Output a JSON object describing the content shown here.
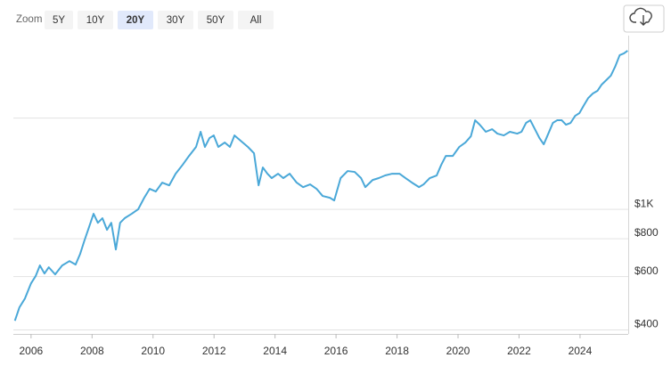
{
  "toolbar": {
    "zoom_label": "Zoom",
    "ranges": [
      "5Y",
      "10Y",
      "20Y",
      "30Y",
      "50Y",
      "All"
    ],
    "selected_index": 2
  },
  "chart_data": {
    "type": "line",
    "log_scale": true,
    "grid": true,
    "color": "#4aa8d8",
    "x": [
      2005.47,
      2005.62,
      2005.8,
      2006.0,
      2006.15,
      2006.29,
      2006.44,
      2006.58,
      2006.79,
      2007.02,
      2007.26,
      2007.46,
      2007.61,
      2007.75,
      2007.9,
      2008.05,
      2008.19,
      2008.34,
      2008.49,
      2008.63,
      2008.78,
      2008.92,
      2009.07,
      2009.3,
      2009.51,
      2009.71,
      2009.89,
      2010.09,
      2010.3,
      2010.53,
      2010.74,
      2010.97,
      2011.18,
      2011.41,
      2011.56,
      2011.7,
      2011.85,
      2011.99,
      2012.14,
      2012.35,
      2012.52,
      2012.67,
      2012.87,
      2013.11,
      2013.31,
      2013.46,
      2013.6,
      2013.75,
      2013.89,
      2014.1,
      2014.27,
      2014.48,
      2014.71,
      2014.92,
      2015.15,
      2015.36,
      2015.56,
      2015.8,
      2015.94,
      2016.15,
      2016.38,
      2016.61,
      2016.82,
      2016.96,
      2017.2,
      2017.4,
      2017.61,
      2017.84,
      2018.08,
      2018.28,
      2018.49,
      2018.72,
      2018.87,
      2019.07,
      2019.3,
      2019.45,
      2019.6,
      2019.83,
      2020.04,
      2020.24,
      2020.42,
      2020.56,
      2020.71,
      2020.91,
      2021.12,
      2021.29,
      2021.5,
      2021.7,
      2021.94,
      2022.08,
      2022.23,
      2022.37,
      2022.52,
      2022.67,
      2022.81,
      2022.96,
      2023.11,
      2023.25,
      2023.4,
      2023.54,
      2023.69,
      2023.84,
      2023.98,
      2024.13,
      2024.27,
      2024.42,
      2024.57,
      2024.71,
      2024.86,
      2025.01,
      2025.15,
      2025.3,
      2025.44,
      2025.56
    ],
    "values": [
      429,
      475,
      508,
      570,
      602,
      653,
      614,
      644,
      610,
      653,
      675,
      657,
      713,
      789,
      873,
      967,
      903,
      935,
      856,
      903,
      737,
      903,
      935,
      967,
      1000,
      1092,
      1169,
      1145,
      1225,
      1200,
      1311,
      1403,
      1501,
      1607,
      1803,
      1607,
      1719,
      1754,
      1607,
      1662,
      1607,
      1754,
      1685,
      1607,
      1532,
      1200,
      1375,
      1311,
      1268,
      1311,
      1268,
      1311,
      1225,
      1184,
      1209,
      1169,
      1107,
      1092,
      1070,
      1268,
      1338,
      1329,
      1268,
      1184,
      1250,
      1268,
      1294,
      1311,
      1311,
      1268,
      1225,
      1184,
      1209,
      1268,
      1294,
      1403,
      1501,
      1501,
      1607,
      1662,
      1742,
      1968,
      1903,
      1803,
      1839,
      1778,
      1754,
      1803,
      1778,
      1803,
      1929,
      1968,
      1839,
      1719,
      1639,
      1778,
      1929,
      1968,
      1968,
      1903,
      1929,
      2036,
      2078,
      2209,
      2331,
      2412,
      2461,
      2581,
      2670,
      2762,
      2955,
      3228,
      3271,
      3338
    ],
    "xlim": [
      2005.42,
      2025.58
    ],
    "xticks": [
      2006,
      2008,
      2010,
      2012,
      2014,
      2016,
      2018,
      2020,
      2022,
      2024
    ],
    "ylim": [
      388,
      3620
    ],
    "yticks": [
      {
        "value": 400,
        "label": "$400"
      },
      {
        "value": 600,
        "label": "$600"
      },
      {
        "value": 800,
        "label": "$800"
      },
      {
        "value": 1000,
        "label": "$1K"
      },
      {
        "value": 2000,
        "label": null
      }
    ]
  }
}
